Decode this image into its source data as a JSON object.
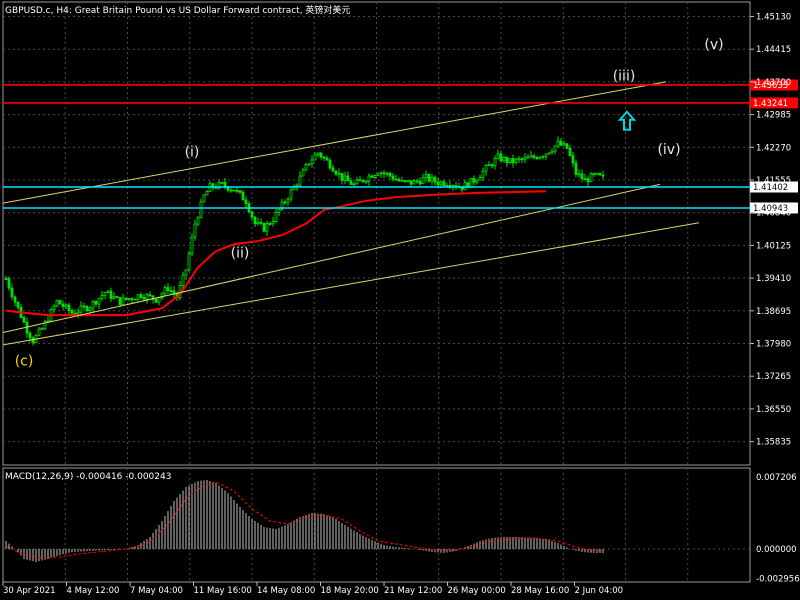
{
  "chart_title": "GBPUSD.c, H4:  Great Britain Pound vs US Dollar Forward contract, 英镑对美元",
  "macd_label": "MACD(12,26,9) -0.000416 -0.000243",
  "colors": {
    "background": "#000000",
    "grid": "#4a4a4a",
    "candle": "#00e000",
    "ma": "#ff0000",
    "channel": "#d8d870",
    "resistance": "#ff0000",
    "support": "#00e5ff",
    "macd_hist": "#c0c0c0",
    "macd_signal": "#ff0000",
    "wave_label_main": "#e8e8e8",
    "wave_label_c": "#ffd000",
    "arrow": "#00d8d8"
  },
  "chart_data": [
    {
      "type": "candlestick",
      "symbol": "GBPUSD.c",
      "timeframe": "H4",
      "ylim": [
        1.3515,
        1.4563
      ],
      "price_ticks": [
        "1.45130",
        "1.44415",
        "1.43700",
        "1.42985",
        "1.42270",
        "1.41555",
        "1.40840",
        "1.40125",
        "1.39410",
        "1.38695",
        "1.37980",
        "1.37265",
        "1.36550",
        "1.35835"
      ],
      "time_labels": [
        "30 Apr 2021",
        "4 May 12:00",
        "7 May 04:00",
        "11 May 16:00",
        "14 May 08:00",
        "18 May 20:00",
        "21 May 12:00",
        "26 May 00:00",
        "28 May 16:00",
        "2 Jun 04:00"
      ],
      "price_profile": [
        [
          0,
          1.394
        ],
        [
          3,
          1.389
        ],
        [
          7,
          1.3828
        ],
        [
          9,
          1.3805
        ],
        [
          12,
          1.383
        ],
        [
          17,
          1.389
        ],
        [
          22,
          1.3865
        ],
        [
          28,
          1.388
        ],
        [
          33,
          1.391
        ],
        [
          38,
          1.389
        ],
        [
          45,
          1.3905
        ],
        [
          50,
          1.3895
        ],
        [
          54,
          1.392
        ],
        [
          57,
          1.39
        ],
        [
          60,
          1.396
        ],
        [
          63,
          1.406
        ],
        [
          66,
          1.412
        ],
        [
          68,
          1.414
        ],
        [
          72,
          1.4145
        ],
        [
          76,
          1.4135
        ],
        [
          80,
          1.411
        ],
        [
          83,
          1.406
        ],
        [
          86,
          1.405
        ],
        [
          89,
          1.407
        ],
        [
          92,
          1.41
        ],
        [
          95,
          1.413
        ],
        [
          98,
          1.416
        ],
        [
          101,
          1.4195
        ],
        [
          104,
          1.4215
        ],
        [
          108,
          1.419
        ],
        [
          112,
          1.416
        ],
        [
          116,
          1.4145
        ],
        [
          120,
          1.416
        ],
        [
          124,
          1.4175
        ],
        [
          128,
          1.4165
        ],
        [
          132,
          1.415
        ],
        [
          136,
          1.415
        ],
        [
          140,
          1.416
        ],
        [
          144,
          1.415
        ],
        [
          148,
          1.415
        ],
        [
          152,
          1.414
        ],
        [
          156,
          1.4155
        ],
        [
          160,
          1.418
        ],
        [
          164,
          1.4205
        ],
        [
          168,
          1.4195
        ],
        [
          172,
          1.42
        ],
        [
          176,
          1.4205
        ],
        [
          180,
          1.4215
        ],
        [
          184,
          1.4235
        ],
        [
          187,
          1.4225
        ],
        [
          190,
          1.417
        ],
        [
          193,
          1.4155
        ],
        [
          196,
          1.4165
        ],
        [
          199,
          1.416
        ]
      ],
      "series": [
        {
          "name": "MA",
          "values": [
            [
              0,
              1.387
            ],
            [
              6,
              1.3865
            ],
            [
              14,
              1.386
            ],
            [
              28,
              1.386
            ],
            [
              40,
              1.386
            ],
            [
              52,
              1.3875
            ],
            [
              58,
              1.3905
            ],
            [
              64,
              1.3965
            ],
            [
              70,
              1.4
            ],
            [
              76,
              1.4015
            ],
            [
              84,
              1.4022
            ],
            [
              92,
              1.4035
            ],
            [
              100,
              1.406
            ],
            [
              106,
              1.409
            ],
            [
              112,
              1.4098
            ],
            [
              120,
              1.411
            ],
            [
              130,
              1.4118
            ],
            [
              145,
              1.4124
            ],
            [
              160,
              1.4128
            ],
            [
              175,
              1.413
            ],
            [
              180,
              1.4131
            ]
          ]
        }
      ],
      "horizontal_levels": [
        {
          "value": 1.43633,
          "label": "1.43633",
          "kind": "resistance"
        },
        {
          "value": 1.43241,
          "label": "1.43241",
          "kind": "resistance"
        },
        {
          "value": 1.41402,
          "label": "1.41402",
          "kind": "support"
        },
        {
          "value": 1.40943,
          "label": "1.40943",
          "kind": "support"
        }
      ],
      "trend_lines": [
        {
          "name": "channel-upper",
          "from": [
            0,
            1.4105
          ],
          "to": [
            220,
            1.437
          ]
        },
        {
          "name": "channel-middle",
          "from": [
            0,
            1.3822
          ],
          "to": [
            218,
            1.4146
          ]
        },
        {
          "name": "channel-lower",
          "from": [
            0,
            1.3795
          ],
          "to": [
            231,
            1.4062
          ]
        }
      ],
      "wave_labels": [
        {
          "text": "(i)",
          "bar": 62,
          "price": 1.4207
        },
        {
          "text": "(ii)",
          "bar": 78,
          "price": 1.3986
        },
        {
          "text": "(iii)",
          "bar": 206,
          "price": 1.4373
        },
        {
          "text": "(iv)",
          "bar": 221,
          "price": 1.4212
        },
        {
          "text": "(v)",
          "bar": 236,
          "price": 1.4442
        },
        {
          "text": "(c)",
          "bar": 6,
          "price": 1.375
        }
      ],
      "arrow": {
        "direction": "up",
        "bar": 207,
        "price": 1.4285
      }
    },
    {
      "type": "macd",
      "label": "MACD(12,26,9) -0.000416 -0.000243",
      "ylim": [
        -0.0033,
        0.0081
      ],
      "ticks": [
        "0.007206",
        "0.000000",
        "-0.002956"
      ],
      "histogram_profile": [
        [
          0,
          0.0008
        ],
        [
          3,
          0.0
        ],
        [
          6,
          -0.001
        ],
        [
          10,
          -0.0013
        ],
        [
          14,
          -0.001
        ],
        [
          18,
          -0.0006
        ],
        [
          22,
          -0.0003
        ],
        [
          28,
          -0.0002
        ],
        [
          34,
          -0.0001
        ],
        [
          40,
          0.0
        ],
        [
          44,
          0.0004
        ],
        [
          48,
          0.0012
        ],
        [
          52,
          0.0028
        ],
        [
          56,
          0.0048
        ],
        [
          60,
          0.0062
        ],
        [
          64,
          0.0068
        ],
        [
          67,
          0.0069
        ],
        [
          70,
          0.0066
        ],
        [
          74,
          0.0056
        ],
        [
          78,
          0.0042
        ],
        [
          82,
          0.003
        ],
        [
          86,
          0.0022
        ],
        [
          90,
          0.002
        ],
        [
          94,
          0.0025
        ],
        [
          98,
          0.0032
        ],
        [
          102,
          0.0036
        ],
        [
          106,
          0.0035
        ],
        [
          110,
          0.003
        ],
        [
          114,
          0.0022
        ],
        [
          118,
          0.0015
        ],
        [
          122,
          0.0009
        ],
        [
          126,
          0.0004
        ],
        [
          130,
          0.0002
        ],
        [
          136,
          0.0
        ],
        [
          142,
          -0.0003
        ],
        [
          146,
          -0.0004
        ],
        [
          150,
          -0.0002
        ],
        [
          154,
          0.0003
        ],
        [
          158,
          0.0008
        ],
        [
          162,
          0.0011
        ],
        [
          166,
          0.0012
        ],
        [
          170,
          0.0012
        ],
        [
          176,
          0.0011
        ],
        [
          180,
          0.001
        ],
        [
          184,
          0.0006
        ],
        [
          188,
          0.0
        ],
        [
          192,
          -0.0003
        ],
        [
          196,
          -0.0004
        ],
        [
          199,
          -0.0004
        ]
      ],
      "signal_profile": [
        [
          0,
          0.0003
        ],
        [
          6,
          -0.0006
        ],
        [
          12,
          -0.0009
        ],
        [
          18,
          -0.0008
        ],
        [
          24,
          -0.0005
        ],
        [
          34,
          -0.0002
        ],
        [
          42,
          0.0001
        ],
        [
          48,
          0.0007
        ],
        [
          54,
          0.0025
        ],
        [
          60,
          0.005
        ],
        [
          66,
          0.0064
        ],
        [
          70,
          0.0067
        ],
        [
          76,
          0.0058
        ],
        [
          82,
          0.004
        ],
        [
          88,
          0.0028
        ],
        [
          94,
          0.0025
        ],
        [
          100,
          0.0032
        ],
        [
          106,
          0.0034
        ],
        [
          112,
          0.003
        ],
        [
          118,
          0.0018
        ],
        [
          124,
          0.0008
        ],
        [
          132,
          0.0004
        ],
        [
          140,
          0.0
        ],
        [
          148,
          -0.0002
        ],
        [
          156,
          0.0003
        ],
        [
          162,
          0.0008
        ],
        [
          168,
          0.001
        ],
        [
          176,
          0.0011
        ],
        [
          184,
          0.0008
        ],
        [
          190,
          0.0002
        ],
        [
          196,
          -0.0002
        ],
        [
          199,
          -0.0002
        ]
      ]
    }
  ]
}
